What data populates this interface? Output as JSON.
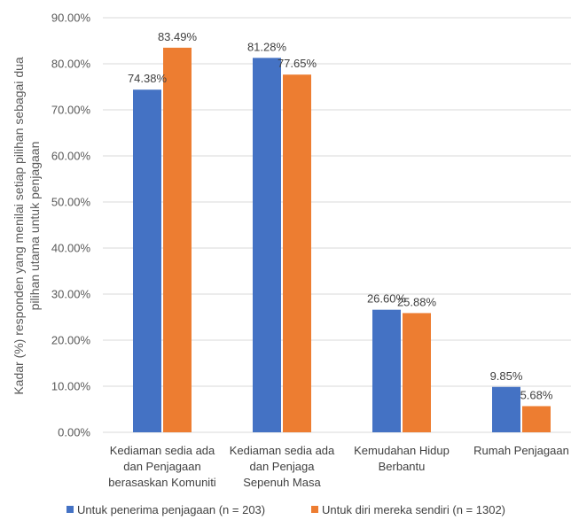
{
  "chart_data": {
    "type": "bar",
    "categories": [
      [
        "Kediaman sedia ada",
        "dan Penjagaan",
        "berasaskan Komuniti"
      ],
      [
        "Kediaman sedia ada",
        "dan Penjaga",
        "Sepenuh Masa"
      ],
      [
        "Kemudahan Hidup",
        "Berbantu"
      ],
      [
        "Rumah Penjagaan"
      ]
    ],
    "series": [
      {
        "name": "Untuk penerima penjagaan (n = 203)",
        "values": [
          74.38,
          81.28,
          26.6,
          9.85
        ],
        "labels": [
          "74.38%",
          "81.28%",
          "26.60%",
          "9.85%"
        ],
        "color": "#4472C4"
      },
      {
        "name": "Untuk diri mereka sendiri (n = 1302)",
        "values": [
          83.49,
          77.65,
          25.88,
          5.68
        ],
        "labels": [
          "83.49%",
          "77.65%",
          "25.88%",
          "5.68%"
        ],
        "color": "#ED7D31"
      }
    ],
    "ylabel": [
      "Kadar (%) responden yang  menilai setiap pilihan sebagai dua",
      "pilihan utama untuk penjagaan"
    ],
    "ylim": [
      0,
      90
    ],
    "yticks": [
      0,
      10,
      20,
      30,
      40,
      50,
      60,
      70,
      80,
      90
    ],
    "ytick_labels": [
      "0.00%",
      "10.00%",
      "20.00%",
      "30.00%",
      "40.00%",
      "50.00%",
      "60.00%",
      "70.00%",
      "80.00%",
      "90.00%"
    ],
    "grid": true,
    "legend": "bottom"
  }
}
